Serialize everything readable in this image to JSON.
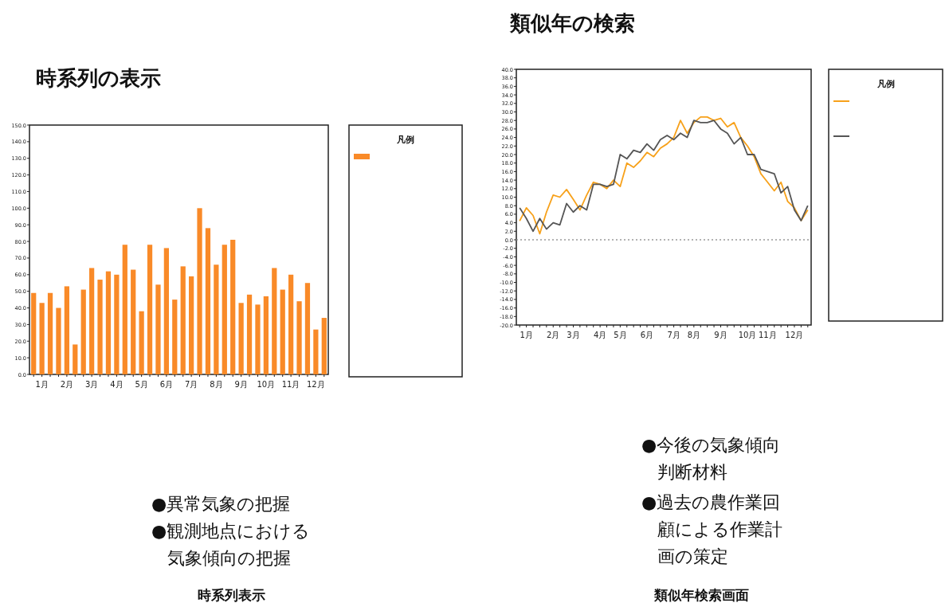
{
  "chart_data": [
    {
      "type": "bar",
      "title": "時系列の表示",
      "legend_title": "凡例",
      "grid": false,
      "categories": [
        null,
        "1月",
        null,
        null,
        "2月",
        null,
        null,
        "3月",
        null,
        null,
        "4月",
        null,
        null,
        "5月",
        null,
        null,
        "6月",
        null,
        null,
        "7月",
        null,
        null,
        "8月",
        null,
        null,
        "9月",
        null,
        null,
        "10月",
        null,
        null,
        "11月",
        null,
        null,
        "12月",
        null
      ],
      "series": [
        {
          "color": "#f98a28",
          "values": [
            49,
            43,
            49,
            40,
            53,
            18,
            51,
            64,
            57,
            62,
            60,
            78,
            63,
            38,
            78,
            54,
            76,
            45,
            65,
            59,
            100,
            88,
            66,
            78,
            81,
            43,
            48,
            42,
            47,
            64,
            51,
            60,
            44,
            55,
            27,
            34
          ]
        }
      ],
      "ylim": [
        0,
        150
      ],
      "yticks": [
        {
          "value": 0,
          "label": "0.0"
        },
        {
          "value": 10,
          "label": "10.0"
        },
        {
          "value": 20,
          "label": "20.0"
        },
        {
          "value": 30,
          "label": "30.0"
        },
        {
          "value": 40,
          "label": "40.0"
        },
        {
          "value": 50,
          "label": "50.0"
        },
        {
          "value": 60,
          "label": "60.0"
        },
        {
          "value": 70,
          "label": "70.0"
        },
        {
          "value": 80,
          "label": "80.0"
        },
        {
          "value": 90,
          "label": "90.0"
        },
        {
          "value": 100,
          "label": "100.0"
        },
        {
          "value": 110,
          "label": "110.0"
        },
        {
          "value": 120,
          "label": "120.0"
        },
        {
          "value": 130,
          "label": "130.0"
        },
        {
          "value": 140,
          "label": "140.0"
        },
        {
          "value": 150,
          "label": "150.0"
        }
      ],
      "annotations": [
        "●異常気象の把握",
        "●観測地点における",
        "気象傾向の把握",
        "時系列表示"
      ]
    },
    {
      "type": "line",
      "title": "類似年の検索",
      "legend_title": "凡例",
      "grid": false,
      "categories": [
        null,
        "1月",
        null,
        null,
        null,
        "2月",
        null,
        null,
        "3月",
        null,
        null,
        null,
        "4月",
        null,
        null,
        "5月",
        null,
        null,
        null,
        "6月",
        null,
        null,
        null,
        "7月",
        null,
        null,
        "8月",
        null,
        null,
        null,
        "9月",
        null,
        null,
        null,
        "10月",
        null,
        null,
        "11月",
        null,
        null,
        null,
        "12月",
        null,
        null
      ],
      "series": [
        {
          "color": "#f7a11a",
          "values": [
            4.4,
            7.5,
            5.7,
            1.4,
            6.5,
            10.5,
            10.0,
            11.8,
            9.5,
            7.0,
            10.5,
            13.5,
            13.0,
            12.0,
            14.0,
            12.5,
            18.0,
            17.0,
            18.5,
            20.5,
            19.5,
            21.5,
            22.5,
            24.0,
            28.0,
            25.0,
            27.5,
            28.8,
            28.8,
            28.0,
            28.5,
            26.5,
            27.5,
            24.0,
            22.0,
            19.5,
            15.5,
            13.5,
            11.5,
            13.5,
            9.0,
            7.5,
            4.5,
            7.0
          ]
        },
        {
          "color": "#555555",
          "values": [
            7.5,
            5.0,
            2.0,
            5.0,
            2.5,
            4.0,
            3.5,
            8.5,
            6.5,
            8.0,
            7.0,
            13.0,
            13.0,
            12.5,
            13.0,
            20.0,
            19.0,
            21.0,
            20.5,
            22.5,
            21.0,
            23.5,
            24.5,
            23.5,
            25.0,
            24.0,
            28.0,
            27.5,
            27.5,
            28.0,
            26.0,
            25.0,
            22.5,
            24.0,
            20.0,
            20.0,
            16.5,
            16.0,
            15.5,
            11.0,
            12.5,
            7.0,
            4.5,
            8.0
          ]
        }
      ],
      "ylim": [
        -20,
        40
      ],
      "yticks": [
        {
          "value": -20,
          "label": "-20.0"
        },
        {
          "value": -18,
          "label": "-18.0"
        },
        {
          "value": -16,
          "label": "-16.0"
        },
        {
          "value": -14,
          "label": "-14.0"
        },
        {
          "value": -12,
          "label": "-12.0"
        },
        {
          "value": -10,
          "label": "-10.0"
        },
        {
          "value": -8,
          "label": "-8.0"
        },
        {
          "value": -6,
          "label": "-6.0"
        },
        {
          "value": -4,
          "label": "-4.0"
        },
        {
          "value": -2,
          "label": "-2.0"
        },
        {
          "value": 0,
          "label": "0.0"
        },
        {
          "value": 2,
          "label": "2.0"
        },
        {
          "value": 4,
          "label": "4.0"
        },
        {
          "value": 6,
          "label": "6.0"
        },
        {
          "value": 8,
          "label": "8.0"
        },
        {
          "value": 10,
          "label": "10.0"
        },
        {
          "value": 12,
          "label": "12.0"
        },
        {
          "value": 14,
          "label": "14.0"
        },
        {
          "value": 16,
          "label": "16.0"
        },
        {
          "value": 18,
          "label": "18.0"
        },
        {
          "value": 20,
          "label": "20.0"
        },
        {
          "value": 22,
          "label": "22.0"
        },
        {
          "value": 24,
          "label": "24.0"
        },
        {
          "value": 26,
          "label": "26.0"
        },
        {
          "value": 28,
          "label": "28.0"
        },
        {
          "value": 30,
          "label": "30.0"
        },
        {
          "value": 32,
          "label": "32.0"
        },
        {
          "value": 34,
          "label": "34.0"
        },
        {
          "value": 36,
          "label": "36.0"
        },
        {
          "value": 38,
          "label": "38.0"
        },
        {
          "value": 40,
          "label": "40.0"
        }
      ],
      "ref_lines": [
        {
          "axis": "y",
          "value": 0,
          "color": "#999999",
          "line_style": "dotted"
        }
      ],
      "annotations": [
        "●今後の気象傾向",
        "判断材料",
        "●過去の農作業回",
        "顧による作業計",
        "画の策定",
        "類似年検索画面"
      ]
    }
  ]
}
